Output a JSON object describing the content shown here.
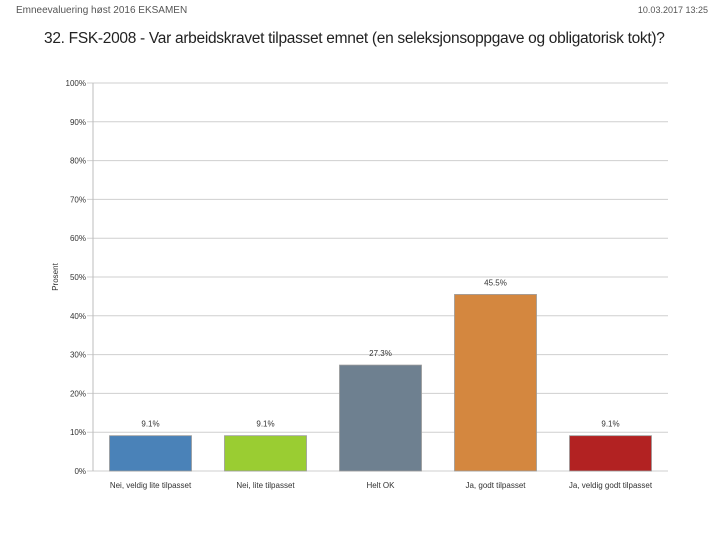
{
  "header": {
    "left_text": "Emneevaluering høst 2016 EKSAMEN",
    "right_text": "10.03.2017 13:25"
  },
  "chart_data": {
    "type": "bar",
    "title": "32. FSK-2008 - Var arbeidskravet tilpasset emnet (en seleksjonsoppgave og obligatorisk tokt)?",
    "ylabel": "Prosent",
    "xlabel": "",
    "ylim": [
      0,
      100
    ],
    "yticks": [
      "0%",
      "10%",
      "20%",
      "30%",
      "40%",
      "50%",
      "60%",
      "70%",
      "80%",
      "90%",
      "100%"
    ],
    "grid": true,
    "categories": [
      "Nei, veldig lite tilpasset",
      "Nei, lite tilpasset",
      "Helt OK",
      "Ja, godt tilpasset",
      "Ja, veldig godt tilpasset"
    ],
    "values": [
      9.1,
      9.1,
      27.3,
      45.5,
      9.1
    ],
    "data_labels": [
      "9.1%",
      "9.1%",
      "27.3%",
      "45.5%",
      "9.1%"
    ],
    "colors": [
      "#4a82b8",
      "#9acd32",
      "#6e8090",
      "#d4873f",
      "#b22222"
    ]
  }
}
